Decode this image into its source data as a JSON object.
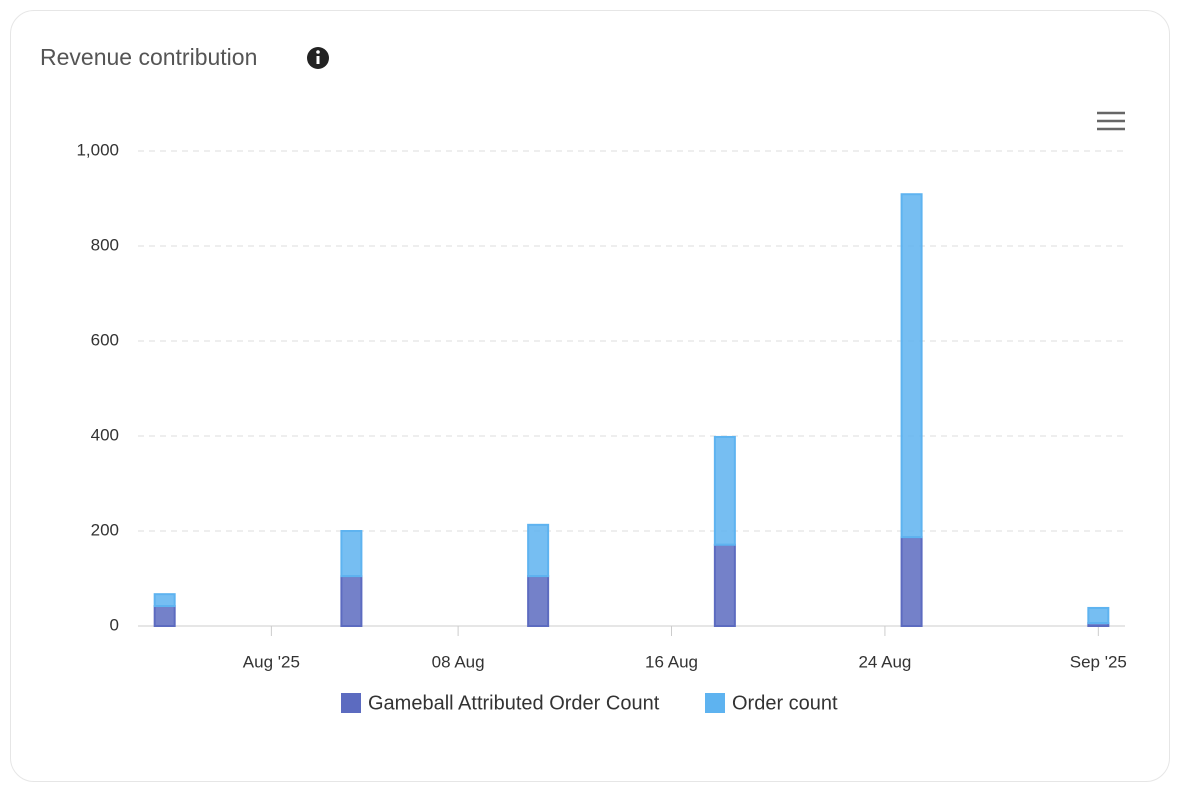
{
  "chart_data": {
    "type": "stacked-bar",
    "title": "Revenue contribution",
    "x": [
      "2025-07-28",
      "2025-08-04",
      "2025-08-11",
      "2025-08-18",
      "2025-08-25",
      "2025-09-01"
    ],
    "series": [
      {
        "name": "Gameball Attributed Order Count",
        "color": "#5c6bc0",
        "values": [
          42,
          105,
          105,
          171,
          187,
          6
        ]
      },
      {
        "name": "Order count",
        "color": "#5eb3f0",
        "values": [
          25,
          95,
          108,
          227,
          722,
          32
        ]
      }
    ],
    "xlim": [
      "2025-07-27",
      "2025-09-02"
    ],
    "xticks": [
      {
        "value": "2025-08-01",
        "label": "Aug '25"
      },
      {
        "value": "2025-08-08",
        "label": "08 Aug"
      },
      {
        "value": "2025-08-16",
        "label": "16 Aug"
      },
      {
        "value": "2025-08-24",
        "label": "24 Aug"
      },
      {
        "value": "2025-09-01",
        "label": "Sep '25"
      }
    ],
    "ylim": [
      0,
      1000
    ],
    "yticks": [
      0,
      200,
      400,
      600,
      800,
      {
        "value": 1000,
        "label": "1,000"
      }
    ],
    "grid": true
  }
}
